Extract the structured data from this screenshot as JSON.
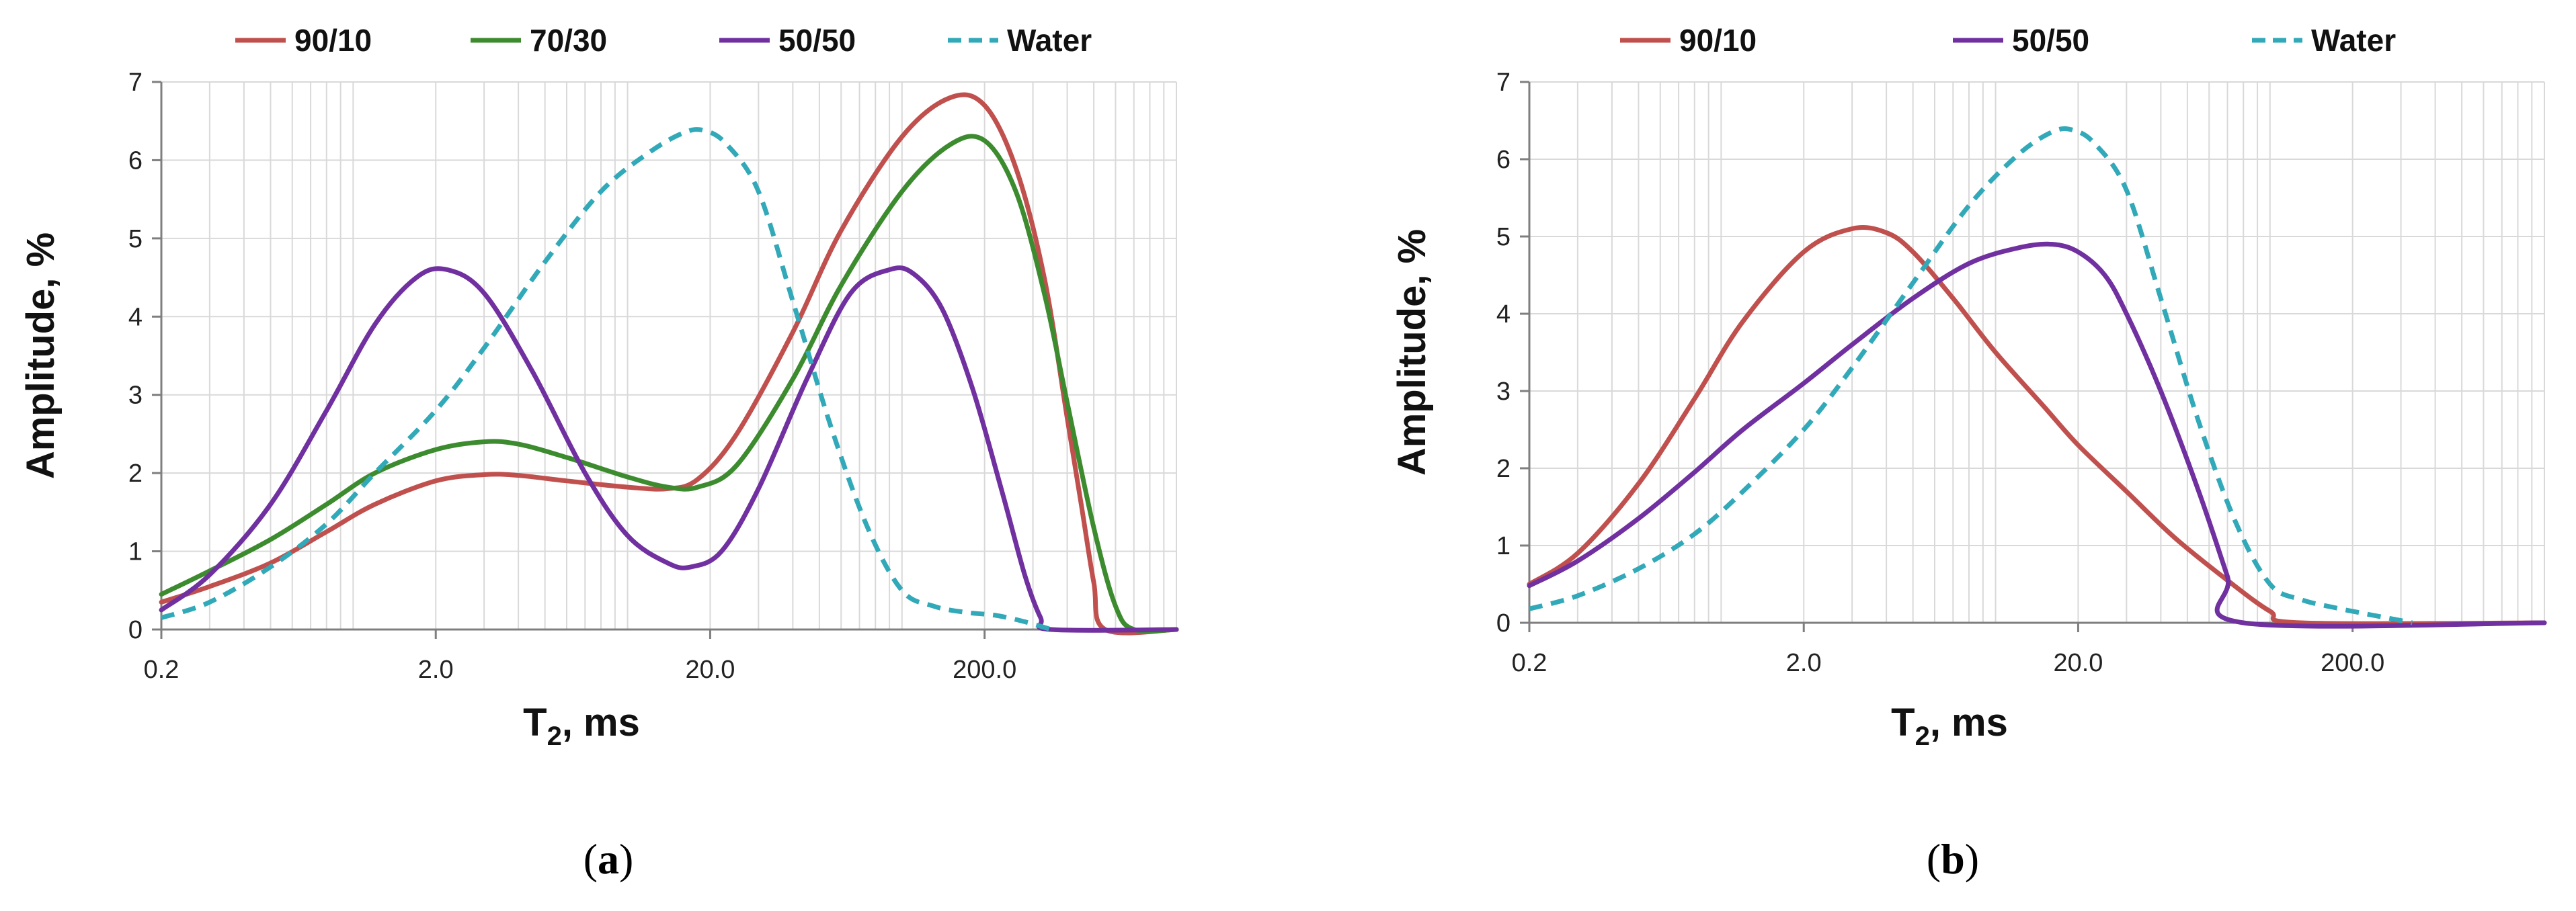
{
  "figure": {
    "colors": {
      "90/10": "#c0504d",
      "70/30": "#3d8b2f",
      "50/50": "#7030a0",
      "Water": "#31a9b8"
    }
  },
  "chart_data": [
    {
      "type": "line",
      "panel_label": "a",
      "x_scale": "log",
      "xlabel": "T",
      "xlabel_sub": "2",
      "xlabel_unit": ", ms",
      "ylabel": "Amplitude, %",
      "xlim": [
        0.2,
        1000
      ],
      "ylim": [
        0,
        7
      ],
      "x_ticks": [
        "0.2",
        "2.0",
        "20.0",
        "200.0"
      ],
      "y_ticks": [
        "0",
        "1",
        "2",
        "3",
        "4",
        "5",
        "6",
        "7"
      ],
      "grid": true,
      "legend": {
        "position": "top",
        "entries": [
          "90/10",
          "70/30",
          "50/50",
          "Water"
        ]
      },
      "series": [
        {
          "name": "90/10",
          "style": "solid",
          "x": [
            0.2,
            0.3,
            0.5,
            0.8,
            1.2,
            2.0,
            3.0,
            4.0,
            6.0,
            10,
            14,
            18,
            25,
            40,
            60,
            100,
            150,
            200,
            260,
            330,
            400,
            450,
            500,
            550,
            1000
          ],
          "y": [
            0.35,
            0.55,
            0.85,
            1.25,
            1.6,
            1.9,
            1.98,
            1.97,
            1.9,
            1.82,
            1.8,
            1.92,
            2.5,
            3.8,
            5.1,
            6.3,
            6.8,
            6.7,
            5.9,
            4.5,
            2.7,
            1.6,
            0.6,
            0,
            0
          ]
        },
        {
          "name": "70/30",
          "style": "solid",
          "x": [
            0.2,
            0.3,
            0.5,
            0.8,
            1.2,
            2.0,
            3.0,
            4.0,
            6.0,
            10,
            14,
            18,
            25,
            40,
            60,
            100,
            150,
            200,
            260,
            330,
            400,
            500,
            600,
            700,
            1000
          ],
          "y": [
            0.45,
            0.75,
            1.15,
            1.6,
            2.0,
            2.3,
            2.4,
            2.37,
            2.2,
            1.95,
            1.82,
            1.82,
            2.1,
            3.2,
            4.4,
            5.6,
            6.2,
            6.25,
            5.6,
            4.3,
            2.9,
            1.3,
            0.3,
            0,
            0
          ]
        },
        {
          "name": "50/50",
          "style": "solid",
          "x": [
            0.2,
            0.3,
            0.5,
            0.8,
            1.2,
            1.7,
            2.2,
            3.0,
            4.5,
            7,
            10,
            14,
            17,
            22,
            30,
            45,
            65,
            90,
            110,
            140,
            180,
            230,
            280,
            320,
            350,
            1000
          ],
          "y": [
            0.25,
            0.7,
            1.6,
            2.8,
            3.9,
            4.5,
            4.6,
            4.3,
            3.3,
            2.0,
            1.2,
            0.85,
            0.8,
            1.0,
            1.8,
            3.2,
            4.3,
            4.6,
            4.55,
            4.1,
            3.1,
            1.8,
            0.7,
            0.15,
            0,
            0
          ]
        },
        {
          "name": "Water",
          "style": "dashed",
          "x": [
            0.2,
            0.3,
            0.5,
            0.8,
            1.2,
            2.0,
            3.0,
            5.0,
            8.0,
            12,
            16,
            19,
            23,
            30,
            40,
            55,
            75,
            100,
            130,
            170,
            220,
            280,
            350
          ],
          "y": [
            0.15,
            0.35,
            0.8,
            1.35,
            2.0,
            2.8,
            3.6,
            4.7,
            5.6,
            6.1,
            6.35,
            6.38,
            6.2,
            5.6,
            4.2,
            2.6,
            1.3,
            0.5,
            0.3,
            0.22,
            0.18,
            0.1,
            0
          ]
        }
      ]
    },
    {
      "type": "line",
      "panel_label": "b",
      "x_scale": "log",
      "xlabel": "T",
      "xlabel_sub": "2",
      "xlabel_unit": ", ms",
      "ylabel": "Amplitude, %",
      "xlim": [
        0.2,
        1000
      ],
      "ylim": [
        0,
        7
      ],
      "x_ticks": [
        "0.2",
        "2.0",
        "20.0",
        "200.0"
      ],
      "y_ticks": [
        "0",
        "1",
        "2",
        "3",
        "4",
        "5",
        "6",
        "7"
      ],
      "grid": true,
      "legend": {
        "position": "top",
        "entries": [
          "90/10",
          "50/50",
          "Water"
        ]
      },
      "series": [
        {
          "name": "90/10",
          "style": "solid",
          "x": [
            0.2,
            0.3,
            0.5,
            0.8,
            1.2,
            2.0,
            3.0,
            4.0,
            5.0,
            7.0,
            10,
            15,
            20,
            30,
            45,
            70,
            100,
            130,
            1000
          ],
          "y": [
            0.5,
            0.9,
            1.8,
            2.9,
            3.9,
            4.8,
            5.1,
            5.05,
            4.8,
            4.2,
            3.5,
            2.8,
            2.3,
            1.7,
            1.1,
            0.55,
            0.15,
            0,
            0
          ]
        },
        {
          "name": "50/50",
          "style": "solid",
          "x": [
            0.2,
            0.3,
            0.5,
            0.8,
            1.2,
            2.0,
            3.0,
            5.0,
            8.0,
            12,
            16,
            20,
            25,
            30,
            40,
            55,
            70,
            80,
            1000
          ],
          "y": [
            0.48,
            0.8,
            1.35,
            1.95,
            2.5,
            3.1,
            3.6,
            4.2,
            4.65,
            4.85,
            4.9,
            4.8,
            4.5,
            4.0,
            3.0,
            1.7,
            0.6,
            0,
            0
          ]
        },
        {
          "name": "Water",
          "style": "dashed",
          "x": [
            0.2,
            0.3,
            0.5,
            0.8,
            1.2,
            2.0,
            3.0,
            5.0,
            8.0,
            12,
            16,
            19,
            23,
            30,
            40,
            55,
            75,
            100,
            130,
            170,
            220,
            280,
            330
          ],
          "y": [
            0.18,
            0.35,
            0.7,
            1.15,
            1.7,
            2.5,
            3.3,
            4.4,
            5.4,
            6.05,
            6.35,
            6.38,
            6.2,
            5.6,
            4.2,
            2.6,
            1.3,
            0.5,
            0.3,
            0.2,
            0.12,
            0.05,
            0
          ]
        }
      ]
    }
  ]
}
